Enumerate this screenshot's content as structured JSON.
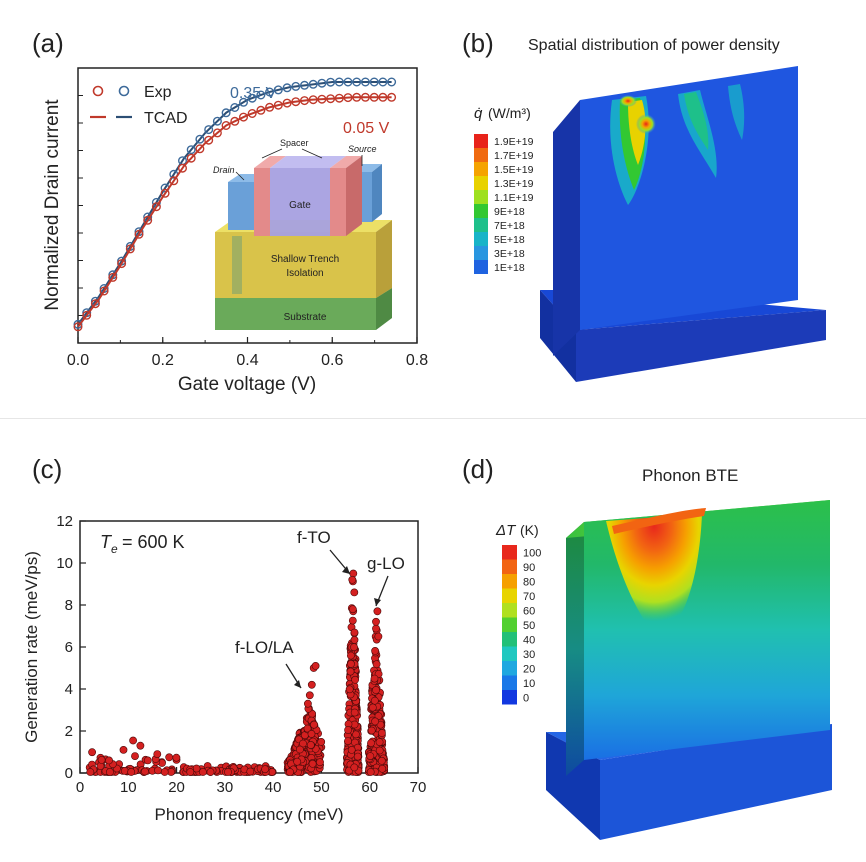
{
  "panels": {
    "a": {
      "label": "(a)"
    },
    "b": {
      "label": "(b)",
      "title": "Spatial distribution of power density"
    },
    "c": {
      "label": "(c)"
    },
    "d": {
      "label": "(d)",
      "title": "Phonon BTE"
    }
  },
  "chart_data": [
    {
      "type": "scatter",
      "panel": "a",
      "xlabel": "Gate voltage (V)",
      "ylabel": "Normalized Drain current",
      "xlim": [
        0,
        0.8
      ],
      "xticks": [
        "0.0",
        "0.2",
        "0.4",
        "0.6",
        "0.8"
      ],
      "legend": [
        {
          "text": "Exp",
          "kind": "circles"
        },
        {
          "text": "TCAD",
          "kind": "lines"
        }
      ],
      "curve_labels": [
        {
          "text": "0.35 V",
          "color": "#3d6a9a"
        },
        {
          "text": "0.05 V",
          "color": "#c0392b"
        }
      ],
      "series": [
        {
          "name": "0.35 V",
          "color": "#3d6a9a",
          "x": [
            0.0,
            0.05,
            0.1,
            0.15,
            0.2,
            0.25,
            0.3,
            0.35,
            0.4,
            0.45,
            0.5,
            0.55,
            0.6,
            0.65,
            0.7,
            0.74
          ],
          "y": [
            0.05,
            0.16,
            0.29,
            0.43,
            0.57,
            0.7,
            0.8,
            0.88,
            0.93,
            0.96,
            0.98,
            0.99,
            1.0,
            1.0,
            1.0,
            1.0
          ]
        },
        {
          "name": "0.05 V",
          "color": "#c0392b",
          "x": [
            0.0,
            0.05,
            0.1,
            0.15,
            0.2,
            0.25,
            0.3,
            0.35,
            0.4,
            0.45,
            0.5,
            0.55,
            0.6,
            0.65,
            0.7,
            0.74
          ],
          "y": [
            0.04,
            0.15,
            0.28,
            0.42,
            0.55,
            0.67,
            0.76,
            0.83,
            0.87,
            0.9,
            0.92,
            0.93,
            0.935,
            0.94,
            0.94,
            0.94
          ]
        }
      ],
      "inset": {
        "labels": [
          "Spacer",
          "Drain",
          "Source",
          "Gate",
          "Shallow Trench\nIsolation",
          "Substrate"
        ]
      }
    },
    {
      "type": "scatter",
      "panel": "c",
      "xlabel": "Phonon frequency (meV)",
      "ylabel": "Generation rate (meV/ps)",
      "xlim": [
        0,
        70
      ],
      "ylim": [
        0,
        12
      ],
      "xticks": [
        0,
        10,
        20,
        30,
        40,
        50,
        60,
        70
      ],
      "yticks": [
        0,
        2,
        4,
        6,
        8,
        10,
        12
      ],
      "annotation_te": "= 600 K",
      "annotation_te_symbol": "T",
      "annotation_te_sub": "e",
      "peaks": [
        {
          "label": "f-LO/LA",
          "x": 48,
          "y": 4.2
        },
        {
          "label": "f-TO",
          "x": 56.5,
          "y": 9.5
        },
        {
          "label": "g-LO",
          "x": 61.5,
          "y": 7.8
        }
      ],
      "point_color": "#d42020"
    }
  ],
  "contour_b": {
    "unit_symbol": "q̇",
    "unit": "(W/m³)",
    "levels": [
      "1.9E+19",
      "1.7E+19",
      "1.5E+19",
      "1.3E+19",
      "1.1E+19",
      "9E+18",
      "7E+18",
      "5E+18",
      "3E+18",
      "1E+18"
    ],
    "colors": [
      "#e8231a",
      "#f06a10",
      "#f5a300",
      "#e8d200",
      "#9ee020",
      "#32c832",
      "#1ec08a",
      "#18b4c8",
      "#2896e0",
      "#1f63e0"
    ]
  },
  "contour_d": {
    "unit_symbol": "ΔT",
    "unit": "(K)",
    "levels": [
      "100",
      "90",
      "80",
      "70",
      "60",
      "50",
      "40",
      "30",
      "20",
      "10",
      "0"
    ],
    "colors": [
      "#e8281c",
      "#f26412",
      "#f6a000",
      "#e8d400",
      "#b0e020",
      "#52d030",
      "#22c078",
      "#20c8c0",
      "#20a8e0",
      "#1a78e8",
      "#1238e0"
    ]
  }
}
